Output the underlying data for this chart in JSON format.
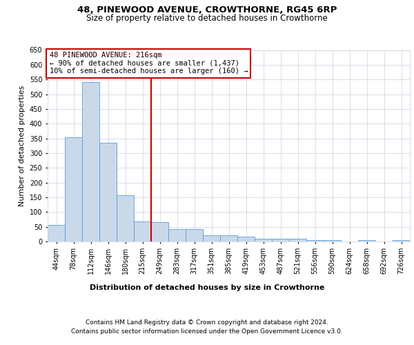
{
  "title": "48, PINEWOOD AVENUE, CROWTHORNE, RG45 6RP",
  "subtitle": "Size of property relative to detached houses in Crowthorne",
  "xlabel": "Distribution of detached houses by size in Crowthorne",
  "ylabel": "Number of detached properties",
  "bar_values": [
    57,
    353,
    540,
    336,
    157,
    68,
    65,
    41,
    42,
    22,
    20,
    16,
    10,
    9,
    9,
    4,
    4,
    0,
    4,
    0,
    5
  ],
  "bar_labels": [
    "44sqm",
    "78sqm",
    "112sqm",
    "146sqm",
    "180sqm",
    "215sqm",
    "249sqm",
    "283sqm",
    "317sqm",
    "351sqm",
    "385sqm",
    "419sqm",
    "453sqm",
    "487sqm",
    "521sqm",
    "556sqm",
    "590sqm",
    "624sqm",
    "658sqm",
    "692sqm",
    "726sqm"
  ],
  "bar_color": "#c9d9ea",
  "bar_edge_color": "#5b9bd5",
  "background_color": "#ffffff",
  "grid_color": "#d0d8e4",
  "vline_x_index": 5,
  "vline_color": "#cc0000",
  "ylim": [
    0,
    650
  ],
  "yticks": [
    0,
    50,
    100,
    150,
    200,
    250,
    300,
    350,
    400,
    450,
    500,
    550,
    600,
    650
  ],
  "annotation_title": "48 PINEWOOD AVENUE: 216sqm",
  "annotation_line1": "← 90% of detached houses are smaller (1,437)",
  "annotation_line2": "10% of semi-detached houses are larger (160) →",
  "annotation_box_color": "#ffffff",
  "annotation_box_edge_color": "#cc0000",
  "footer_line1": "Contains HM Land Registry data © Crown copyright and database right 2024.",
  "footer_line2": "Contains public sector information licensed under the Open Government Licence v3.0.",
  "title_fontsize": 9.5,
  "subtitle_fontsize": 8.5,
  "axis_label_fontsize": 8,
  "tick_fontsize": 7,
  "annotation_fontsize": 7.5,
  "footer_fontsize": 6.5
}
